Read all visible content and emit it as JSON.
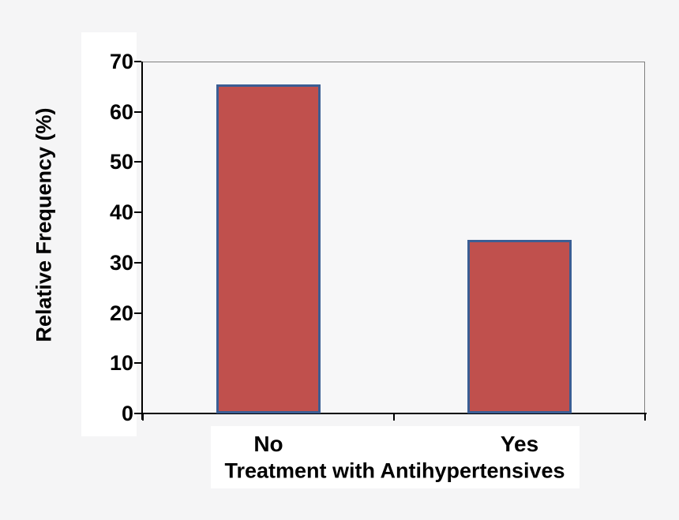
{
  "chart_data": {
    "type": "bar",
    "title": "",
    "categories": [
      "No",
      "Yes"
    ],
    "values": [
      65.5,
      34.5
    ],
    "xlabel": "Treatment with Antihypertensives",
    "ylabel": "Relative Frequency (%)",
    "ylim": [
      0,
      70
    ],
    "yticks": [
      0,
      10,
      20,
      30,
      40,
      50,
      60,
      70
    ],
    "grid": "off",
    "legend": "none",
    "colors": {
      "bar_fill": "#c0504d",
      "bar_border": "#3b5e94",
      "axis": "#000000",
      "plot_border": "#7f7f7f",
      "text": "#000000",
      "page_background": "#f5f5f6",
      "plot_background": "#f7f7f8",
      "label_strip_background": "#ffffff"
    }
  }
}
